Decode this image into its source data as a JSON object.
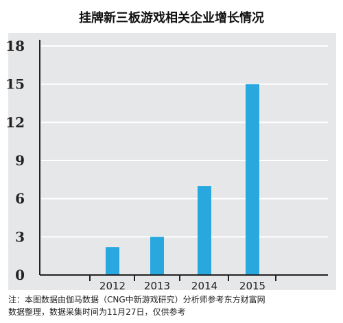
{
  "chart_data": {
    "type": "bar",
    "title": "挂牌新三板游戏相关企业增长情况",
    "categories": [
      "2012",
      "2013",
      "2014",
      "2015"
    ],
    "values": [
      2.2,
      3,
      7,
      15
    ],
    "ylim": [
      0,
      18
    ],
    "yticks": [
      0,
      3,
      6,
      9,
      12,
      15,
      18
    ],
    "ytick_labels": [
      "0",
      "3",
      "6",
      "9",
      "12",
      "15",
      "18"
    ],
    "xlabel": "",
    "ylabel": "",
    "grid": true,
    "legend": "none",
    "colors": {
      "bar": "#29a8e0",
      "grid": "#ffffff",
      "background": "#e6e7e9",
      "axis": "#222222"
    }
  },
  "note": {
    "line1": "注：本图数据由伽马数据（CNG中新游戏研究）分析师参考东方财富网",
    "line2": "数据整理，数据采集时间为11月27日，仅供参考"
  }
}
